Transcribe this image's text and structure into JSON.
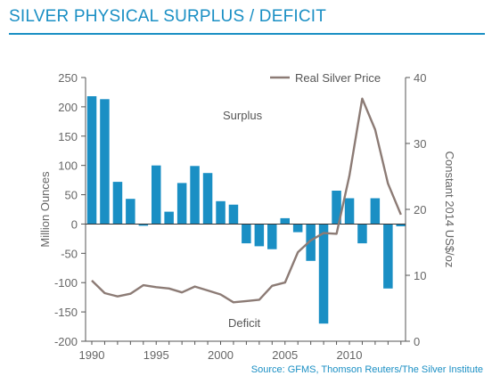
{
  "title": "SILVER PHYSICAL SURPLUS / DEFICIT",
  "source": "Source:  GFMS, Thomson Reuters/The Silver Institute",
  "chart_data": {
    "type": "bar",
    "years": [
      1990,
      1991,
      1992,
      1993,
      1994,
      1995,
      1996,
      1997,
      1998,
      1999,
      2000,
      2001,
      2002,
      2003,
      2004,
      2005,
      2006,
      2007,
      2008,
      2009,
      2010,
      2011,
      2012,
      2013,
      2014
    ],
    "x_tick_labels": [
      "1990",
      "1995",
      "2000",
      "2005",
      "2010"
    ],
    "series": [
      {
        "axis": "left",
        "type": "bar",
        "color": "#1a8fc4",
        "values": [
          218,
          213,
          72,
          43,
          -3,
          100,
          21,
          70,
          99,
          87,
          39,
          33,
          -33,
          -38,
          -43,
          10,
          -14,
          -63,
          -170,
          57,
          44,
          -33,
          44,
          -110,
          -4
        ]
      },
      {
        "name": "Real Silver Price",
        "axis": "right",
        "type": "line",
        "color": "#8c7b75",
        "values": [
          9.2,
          7.3,
          6.8,
          7.2,
          8.5,
          8.2,
          8.0,
          7.4,
          8.3,
          7.7,
          7.1,
          5.9,
          6.1,
          6.3,
          8.4,
          8.9,
          13.5,
          15.3,
          16.4,
          16.3,
          25.1,
          36.8,
          32.1,
          23.9,
          19.2
        ]
      }
    ],
    "ylabel": "Million Ounces",
    "y2label": "Constant 2014 US$/oz",
    "ylim": [
      -200,
      250
    ],
    "yticks": [
      -200,
      -150,
      -100,
      -50,
      0,
      50,
      100,
      150,
      200,
      250
    ],
    "y2lim": [
      0,
      40
    ],
    "y2ticks": [
      0,
      10,
      20,
      30,
      40
    ],
    "legend": "top-right",
    "annotations": {
      "surplus": "Surplus",
      "deficit": "Deficit"
    }
  }
}
